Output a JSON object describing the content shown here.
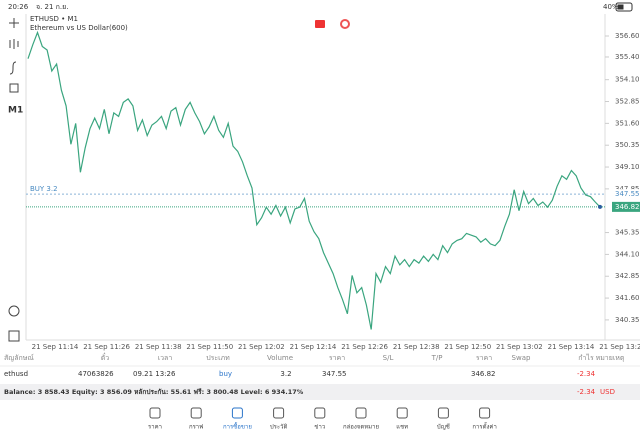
{
  "status": {
    "time": "20:26",
    "date": "จ. 21 ก.ย.",
    "battery": "40%"
  },
  "toolbar": {
    "timeframe": "M1"
  },
  "chart_data": {
    "type": "line",
    "title": "ETHUSD • M1",
    "subtitle": "Ethereum vs US Dollar(600)",
    "color": "#3aa57f",
    "values": [
      355.3,
      356.1,
      356.8,
      356.0,
      355.8,
      354.6,
      355.0,
      353.5,
      352.6,
      350.4,
      351.6,
      348.8,
      350.2,
      351.3,
      351.9,
      351.3,
      352.4,
      351.0,
      352.2,
      352.0,
      352.8,
      353.0,
      352.6,
      351.2,
      351.8,
      350.9,
      351.5,
      351.7,
      352.0,
      351.3,
      352.3,
      352.5,
      351.5,
      352.4,
      352.8,
      352.2,
      351.7,
      351.0,
      351.4,
      352.0,
      351.2,
      350.8,
      351.6,
      350.3,
      350.0,
      349.4,
      348.6,
      347.9,
      345.8,
      346.2,
      346.8,
      346.4,
      346.9,
      346.3,
      346.8,
      345.9,
      346.7,
      346.8,
      347.3,
      346.0,
      345.4,
      345.0,
      344.2,
      343.6,
      343.0,
      342.2,
      341.5,
      340.7,
      342.9,
      341.9,
      342.2,
      341.2,
      339.8,
      343.0,
      342.5,
      343.4,
      343.0,
      344.0,
      343.5,
      343.8,
      343.4,
      343.8,
      343.6,
      344.0,
      343.7,
      344.1,
      343.8,
      344.6,
      344.2,
      344.7,
      344.9,
      345.0,
      345.3,
      345.2,
      345.1,
      344.8,
      345.0,
      344.7,
      344.6,
      344.9,
      345.7,
      346.4,
      347.8,
      346.6,
      347.7,
      347.0,
      347.3,
      346.9,
      347.1,
      346.8,
      347.2,
      348.0,
      348.6,
      348.4,
      348.9,
      348.6,
      347.9,
      347.5,
      347.4,
      347.1,
      346.82
    ],
    "ylim": [
      339.2,
      357.86
    ],
    "yticks": [
      {
        "value": 356.6,
        "label": "356.60"
      },
      {
        "value": 355.4,
        "label": "355.40"
      },
      {
        "value": 354.1,
        "label": "354.10"
      },
      {
        "value": 352.85,
        "label": "352.85"
      },
      {
        "value": 351.6,
        "label": "351.60"
      },
      {
        "value": 350.35,
        "label": "350.35"
      },
      {
        "value": 349.1,
        "label": "349.10"
      },
      {
        "value": 347.85,
        "label": "347.85"
      },
      {
        "value": 345.35,
        "label": "345.35"
      },
      {
        "value": 344.1,
        "label": "344.10"
      },
      {
        "value": 342.85,
        "label": "342.85"
      },
      {
        "value": 341.6,
        "label": "341.60"
      },
      {
        "value": 340.35,
        "label": "340.35"
      }
    ],
    "time_labels": [
      "21 Sep 11:14",
      "21 Sep 11:26",
      "21 Sep 11:38",
      "21 Sep 11:50",
      "21 Sep 12:02",
      "21 Sep 12:14",
      "21 Sep 12:26",
      "21 Sep 12:38",
      "21 Sep 12:50",
      "21 Sep 13:02",
      "21 Sep 13:14",
      "21 Sep 13:26"
    ],
    "buy_line": {
      "label": "BUY 3.2",
      "value": 347.55,
      "value_label": "347.55"
    },
    "price": {
      "value": 346.82,
      "value_label": "346.82"
    }
  },
  "table": {
    "header": [
      "สัญลักษณ์",
      "ตั๋ว",
      "เวลา",
      "ประเภท",
      "Volume",
      "ราคา",
      "S/L",
      "T/P",
      "ราคา",
      "Swap",
      "กำไร",
      "หมายเหตุ"
    ],
    "row": [
      "ethusd",
      "47063826",
      "09.21 13:26",
      "buy",
      "3.2",
      "347.55",
      "",
      "",
      "346.82",
      "",
      "-2.34",
      ""
    ]
  },
  "balance": {
    "text": "Balance: 3 858.43 Equity: 3 856.09 หลักประกัน: 55.61 ฟรี: 3 800.48 Level: 6 934.17%",
    "profit": "-2.34",
    "currency": "USD"
  },
  "tabs": [
    "ราคา",
    "กราฟ",
    "การซื้อขาย",
    "ประวัติ",
    "ข่าว",
    "กล่องจดหมาย",
    "แชท",
    "บัญชี",
    "การตั้งค่า"
  ]
}
